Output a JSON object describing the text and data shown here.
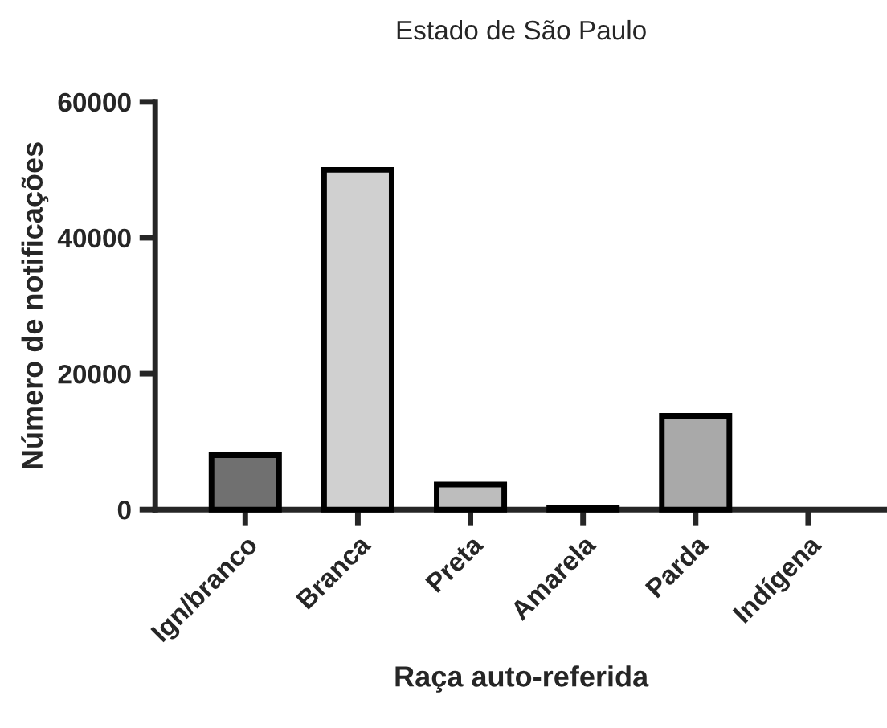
{
  "chart_data": {
    "type": "bar",
    "title": "Estado de São Paulo",
    "xlabel": "Raça auto-referida",
    "ylabel": "Número de notificações",
    "categories": [
      "Ign/branco",
      "Branca",
      "Preta",
      "Amarela",
      "Parda",
      "Indígena"
    ],
    "values": [
      8000,
      50000,
      3700,
      300,
      13800,
      null
    ],
    "colors": [
      "#707070",
      "#d0d0d0",
      "#bdbdbd",
      "#c4c4c4",
      "#a9a9a9",
      null
    ],
    "ylim": [
      0,
      60000
    ],
    "yticks": [
      0,
      20000,
      40000,
      60000
    ],
    "grid": false
  }
}
